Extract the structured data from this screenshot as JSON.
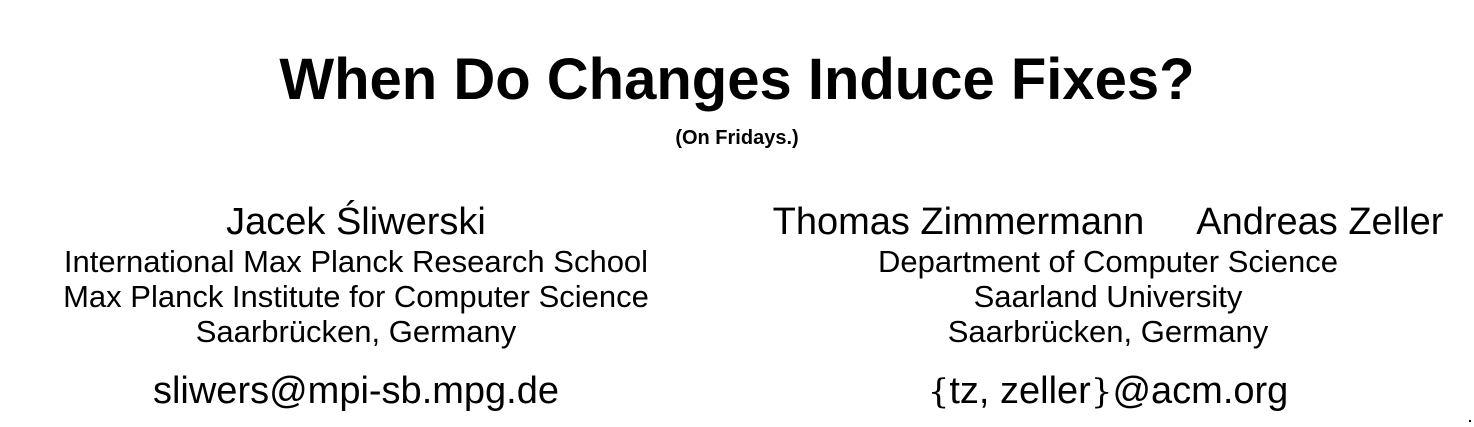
{
  "paper": {
    "title": "When Do Changes Induce Fixes?",
    "subtitle": "(On Fridays.)"
  },
  "authors_left": {
    "name": "Jacek Śliwerski",
    "affiliation_line1": "International Max Planck Research School",
    "affiliation_line2": "Max Planck Institute for Computer Science",
    "affiliation_line3": "Saarbrücken, Germany",
    "email": "sliwers@mpi-sb.mpg.de"
  },
  "authors_right": {
    "name1": "Thomas Zimmermann",
    "name2": "Andreas Zeller",
    "affiliation_line1": "Department of Computer Science",
    "affiliation_line2": "Saarland University",
    "affiliation_line3": "Saarbrücken, Germany",
    "email_brace_open": "{",
    "email_users": "tz, zeller",
    "email_brace_close": "}",
    "email_domain": "@acm.org"
  }
}
